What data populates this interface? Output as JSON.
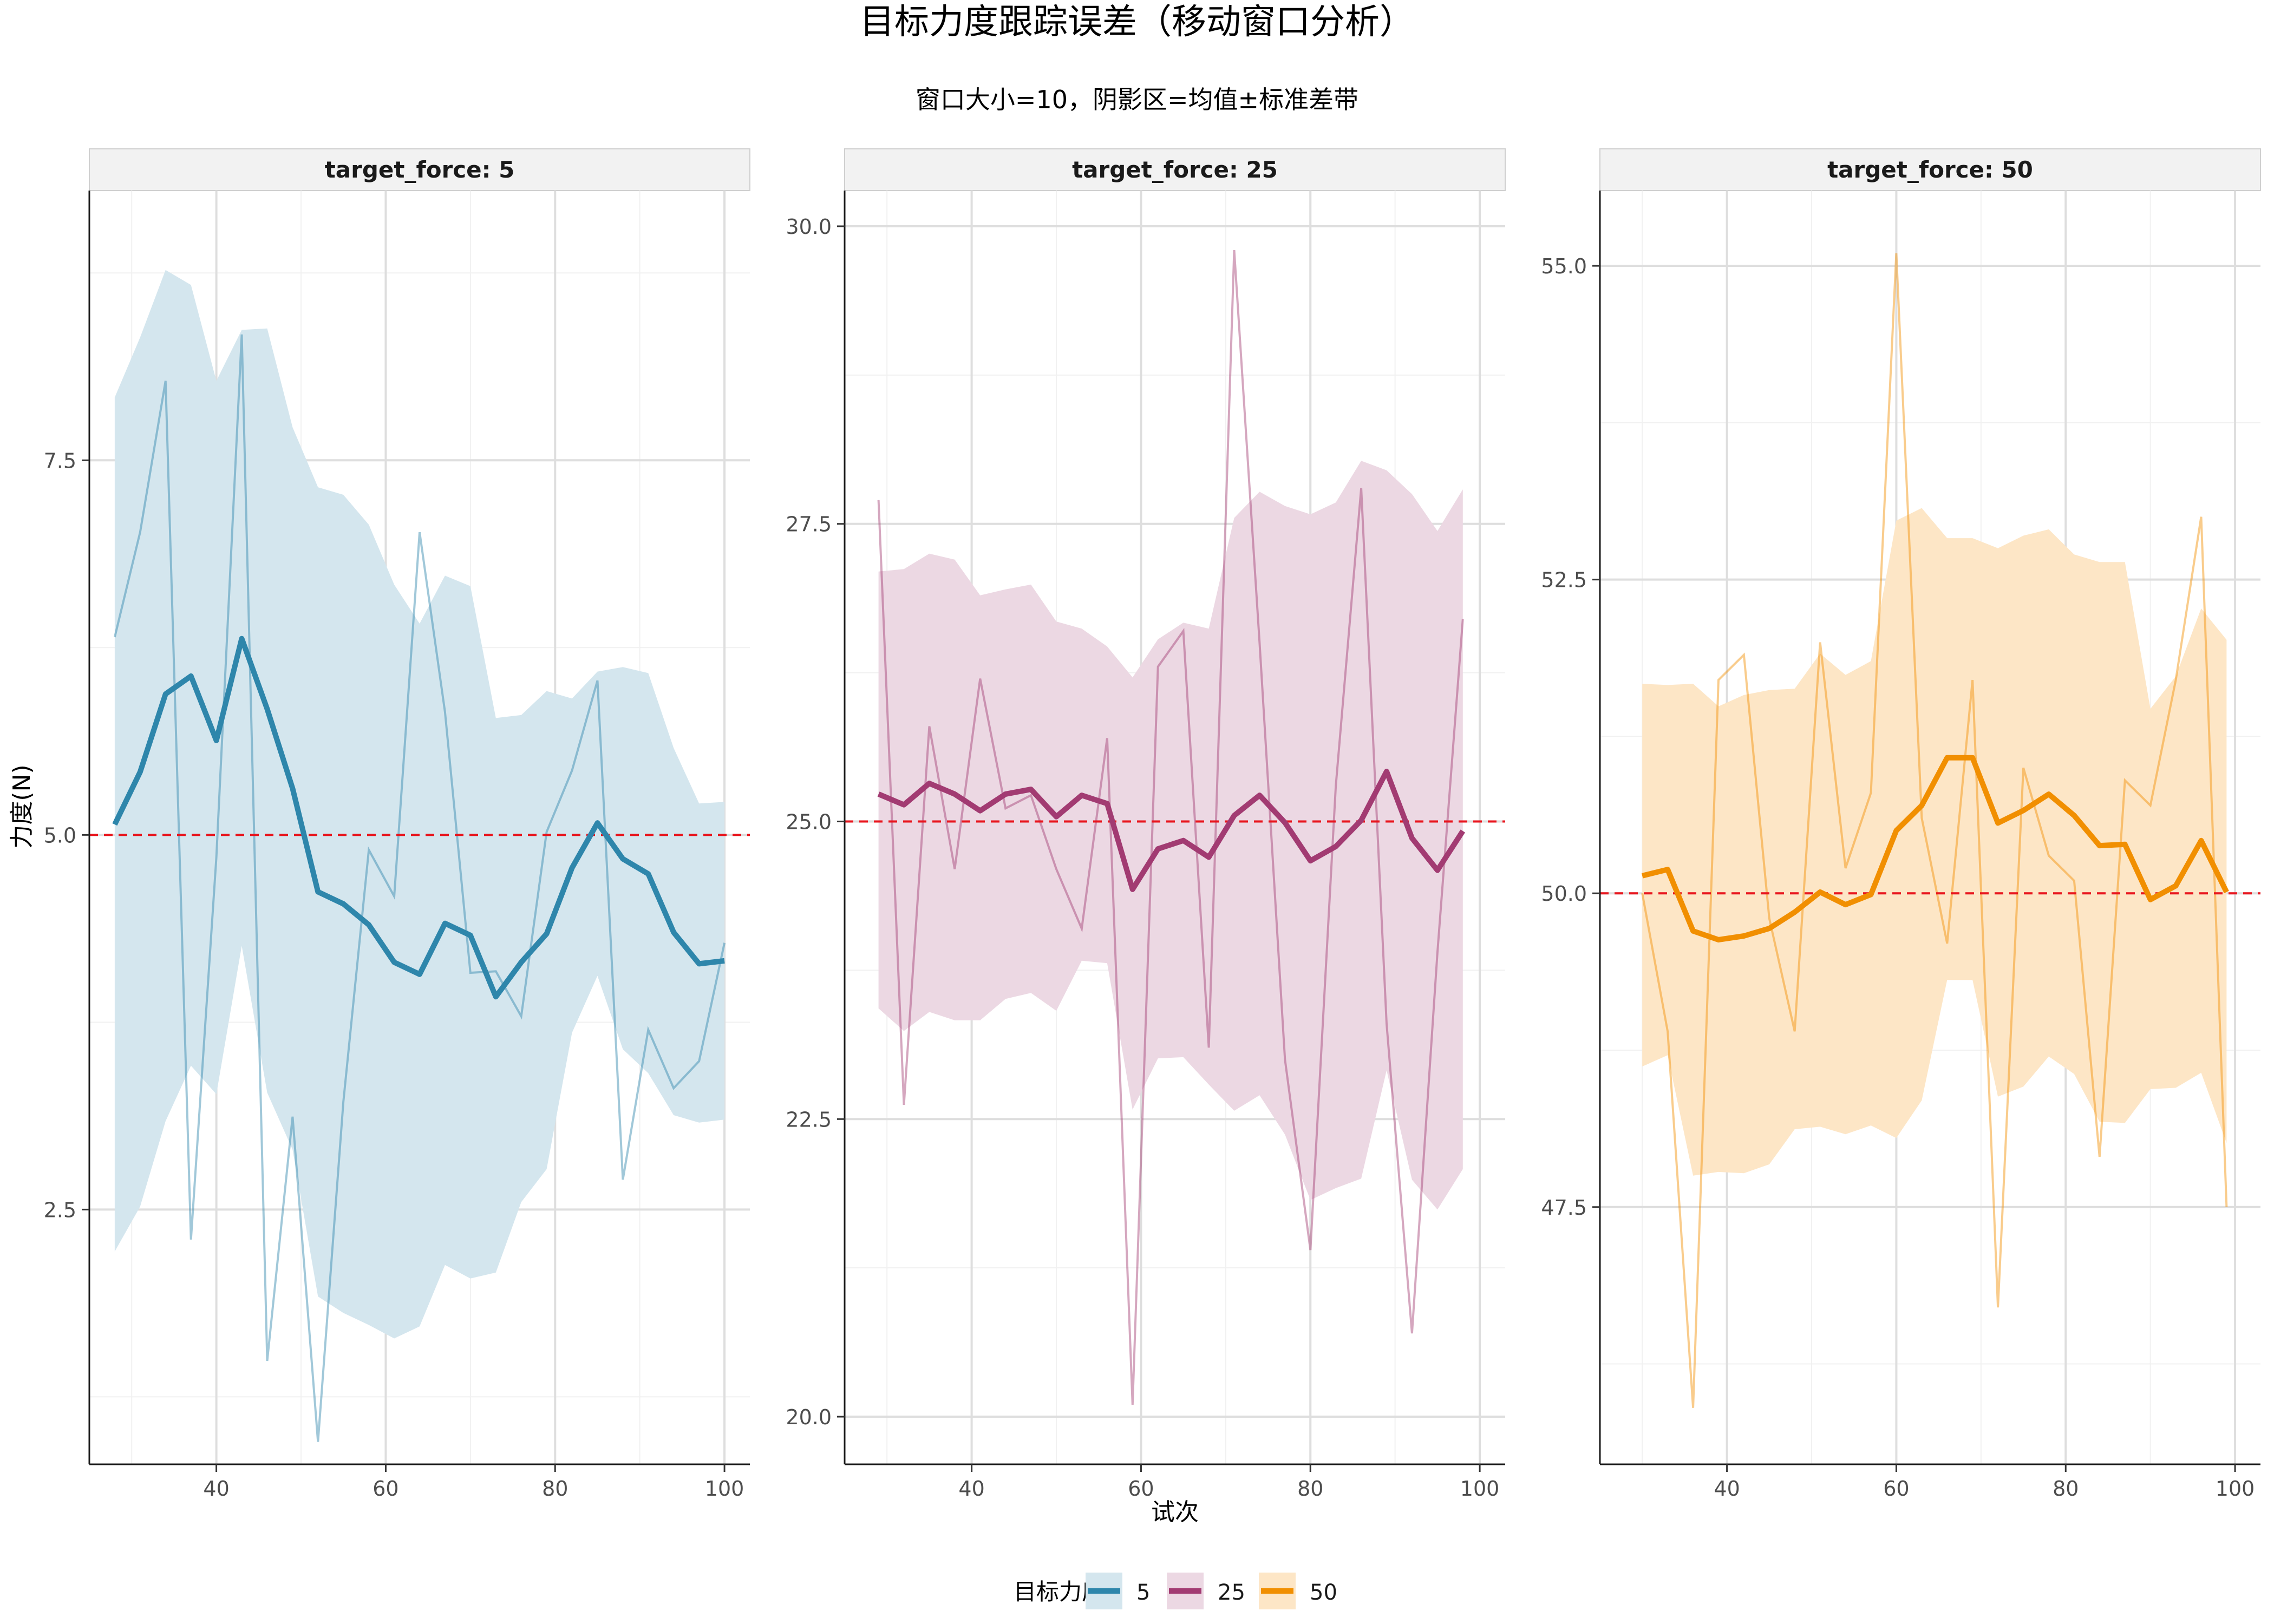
{
  "title": "目标力度跟踪误差（移动窗口分析）",
  "subtitle": "窗口大小=10，阴影区=均值±标准差带",
  "xlabel": "试次",
  "ylabel": "力度(N)",
  "legend": {
    "title": "目标力度",
    "entries": [
      {
        "label": "5",
        "color": "#2E86AB",
        "fill": "#d4e6ee"
      },
      {
        "label": "25",
        "color": "#A23B72",
        "fill": "#ecd8e3"
      },
      {
        "label": "50",
        "color": "#F18F01",
        "fill": "#fde6c6"
      }
    ]
  },
  "colors": {
    "reference_line": "#e8141c",
    "grid_major": "#dedede",
    "grid_minor": "#f1f1f1",
    "strip": "#f2f2f2"
  },
  "chart_data": [
    {
      "type": "line",
      "panel": "target_force: 5",
      "target": 5,
      "xlim": [
        25,
        103
      ],
      "ylim": [
        0.8,
        9.3
      ],
      "xticks": [
        40,
        60,
        80,
        100
      ],
      "xtick_labels": [
        "40",
        "60",
        "80",
        "100"
      ],
      "yticks": [
        2.5,
        5.0,
        7.5
      ],
      "ytick_labels": [
        "2.5",
        "5.0",
        "7.5"
      ],
      "minor_yticks": [
        1.25,
        3.75,
        6.25,
        8.75
      ],
      "minor_xticks": [
        30,
        50,
        70,
        90
      ],
      "x": [
        28,
        31,
        34,
        37,
        40,
        43,
        46,
        49,
        52,
        55,
        58,
        61,
        64,
        67,
        70,
        73,
        76,
        79,
        82,
        85,
        88,
        91,
        94,
        97,
        100
      ],
      "rolling_mean": [
        5.07,
        5.42,
        5.94,
        6.06,
        5.63,
        6.31,
        5.84,
        5.31,
        4.62,
        4.54,
        4.4,
        4.15,
        4.07,
        4.41,
        4.33,
        3.92,
        4.15,
        4.34,
        4.78,
        5.08,
        4.84,
        4.74,
        4.35,
        4.14,
        4.16
      ],
      "upper": [
        7.92,
        8.32,
        8.77,
        8.67,
        8.03,
        8.37,
        8.38,
        7.72,
        7.32,
        7.27,
        7.07,
        6.67,
        6.41,
        6.73,
        6.66,
        5.78,
        5.8,
        5.96,
        5.91,
        6.09,
        6.12,
        6.08,
        5.58,
        5.21,
        5.22
      ],
      "lower": [
        2.22,
        2.52,
        3.09,
        3.46,
        3.27,
        4.26,
        3.28,
        2.9,
        1.92,
        1.81,
        1.73,
        1.64,
        1.72,
        2.13,
        2.04,
        2.08,
        2.55,
        2.77,
        3.68,
        4.06,
        3.57,
        3.41,
        3.13,
        3.08,
        3.1
      ],
      "raw": [
        6.32,
        7.02,
        8.03,
        2.3,
        4.85,
        8.34,
        1.49,
        3.12,
        0.95,
        3.22,
        4.9,
        4.59,
        7.02,
        5.82,
        4.08,
        4.09,
        3.79,
        5.02,
        5.43,
        6.03,
        2.7,
        3.7,
        3.31,
        3.49,
        4.28
      ]
    },
    {
      "type": "line",
      "panel": "target_force: 25",
      "target": 25,
      "xlim": [
        25,
        103
      ],
      "ylim": [
        19.6,
        30.3
      ],
      "xticks": [
        40,
        60,
        80,
        100
      ],
      "xtick_labels": [
        "40",
        "60",
        "80",
        "100"
      ],
      "yticks": [
        20.0,
        22.5,
        25.0,
        27.5,
        30.0
      ],
      "ytick_labels": [
        "20.0",
        "22.5",
        "25.0",
        "27.5",
        "30.0"
      ],
      "minor_yticks": [
        21.25,
        23.75,
        26.25,
        28.75
      ],
      "minor_xticks": [
        30,
        50,
        70,
        90
      ],
      "x": [
        29,
        32,
        35,
        38,
        41,
        44,
        47,
        50,
        53,
        56,
        59,
        62,
        65,
        68,
        71,
        74,
        77,
        80,
        83,
        86,
        89,
        92,
        95,
        98
      ],
      "rolling_mean": [
        25.23,
        25.14,
        25.32,
        25.23,
        25.09,
        25.23,
        25.27,
        25.04,
        25.22,
        25.15,
        24.43,
        24.77,
        24.84,
        24.7,
        25.05,
        25.22,
        24.99,
        24.67,
        24.79,
        25.01,
        25.42,
        24.86,
        24.59,
        24.92
      ],
      "upper": [
        27.1,
        27.12,
        27.25,
        27.2,
        26.9,
        26.95,
        26.99,
        26.68,
        26.62,
        26.47,
        26.21,
        26.53,
        26.67,
        26.62,
        27.55,
        27.77,
        27.65,
        27.58,
        27.68,
        28.03,
        27.95,
        27.75,
        27.44,
        27.79
      ],
      "lower": [
        23.43,
        23.24,
        23.4,
        23.33,
        23.33,
        23.51,
        23.56,
        23.41,
        23.83,
        23.81,
        22.58,
        23.01,
        23.02,
        22.79,
        22.57,
        22.7,
        22.37,
        21.82,
        21.92,
        22.0,
        22.91,
        21.99,
        21.74,
        22.08
      ],
      "raw": [
        27.7,
        22.62,
        25.8,
        24.6,
        26.2,
        25.11,
        25.22,
        24.6,
        24.1,
        25.7,
        20.1,
        26.3,
        26.6,
        23.1,
        29.8,
        26.5,
        23.0,
        21.4,
        25.3,
        27.8,
        23.3,
        20.7,
        23.9,
        26.7
      ]
    },
    {
      "type": "line",
      "panel": "target_force: 50",
      "target": 50,
      "xlim": [
        25,
        103
      ],
      "ylim": [
        45.45,
        55.6
      ],
      "xticks": [
        40,
        60,
        80,
        100
      ],
      "xtick_labels": [
        "40",
        "60",
        "80",
        "100"
      ],
      "yticks": [
        47.5,
        50.0,
        52.5,
        55.0
      ],
      "ytick_labels": [
        "47.5",
        "50.0",
        "52.5",
        "55.0"
      ],
      "minor_yticks": [
        46.25,
        48.75,
        51.25,
        53.75
      ],
      "minor_xticks": [
        30,
        50,
        70,
        90
      ],
      "x": [
        30,
        33,
        36,
        39,
        42,
        45,
        48,
        51,
        54,
        57,
        60,
        63,
        66,
        69,
        72,
        75,
        78,
        81,
        84,
        87,
        90,
        93,
        96,
        99
      ],
      "rolling_mean": [
        50.14,
        50.19,
        49.7,
        49.63,
        49.66,
        49.72,
        49.85,
        50.01,
        49.91,
        49.99,
        50.5,
        50.7,
        51.08,
        51.08,
        50.56,
        50.66,
        50.79,
        50.62,
        50.38,
        50.39,
        49.95,
        50.06,
        50.42,
        50.01
      ],
      "upper": [
        51.67,
        51.66,
        51.67,
        51.49,
        51.58,
        51.62,
        51.63,
        51.91,
        51.74,
        51.85,
        52.97,
        53.07,
        52.83,
        52.83,
        52.75,
        52.85,
        52.9,
        52.7,
        52.64,
        52.64,
        51.47,
        51.73,
        52.27,
        52.02
      ],
      "lower": [
        48.62,
        48.71,
        47.75,
        47.78,
        47.77,
        47.84,
        48.12,
        48.14,
        48.08,
        48.15,
        48.05,
        48.35,
        49.31,
        49.31,
        48.38,
        48.46,
        48.7,
        48.56,
        48.18,
        48.17,
        48.44,
        48.45,
        48.57,
        48.01
      ],
      "raw": [
        50.0,
        48.9,
        45.9,
        51.7,
        51.9,
        49.8,
        48.9,
        52.0,
        50.2,
        50.8,
        55.1,
        50.6,
        49.6,
        51.7,
        46.7,
        51.0,
        50.3,
        50.1,
        47.9,
        50.9,
        50.7,
        51.7,
        53.0,
        47.5
      ]
    }
  ]
}
